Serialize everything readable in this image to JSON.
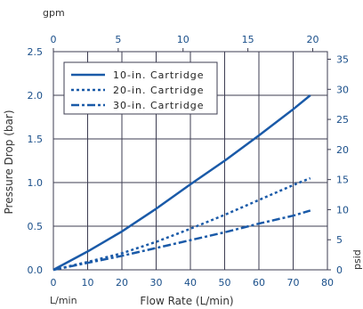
{
  "chart_data": {
    "type": "line",
    "xlabel": "Flow Rate (L/min)",
    "ylabel": "Pressure Drop (bar)",
    "x_unit": "L/min",
    "secondary_x_label": "gpm",
    "secondary_y_label": "psid",
    "xlim": [
      0,
      80
    ],
    "ylim": [
      0,
      2.5
    ],
    "x_ticks": [
      0,
      10,
      20,
      30,
      40,
      50,
      60,
      70,
      80
    ],
    "y_ticks": [
      "0.0",
      "0.5",
      "1.0",
      "1.5",
      "2.0",
      "2.5"
    ],
    "secondary_x_ticks": [
      0,
      5,
      10,
      15,
      20
    ],
    "secondary_y_ticks": [
      0,
      5,
      10,
      15,
      20,
      25,
      30,
      35
    ],
    "grid": true,
    "legend_position": "top-left",
    "series": [
      {
        "name": "10-in. Cartridge",
        "style": "solid",
        "x": [
          0,
          10,
          20,
          30,
          40,
          50,
          60,
          70,
          75
        ],
        "y": [
          0,
          0.21,
          0.44,
          0.7,
          0.98,
          1.25,
          1.54,
          1.84,
          2.0
        ]
      },
      {
        "name": "20-in. Cartridge",
        "style": "dotted",
        "x": [
          0,
          10,
          20,
          30,
          40,
          50,
          60,
          70,
          75
        ],
        "y": [
          0,
          0.09,
          0.19,
          0.32,
          0.47,
          0.63,
          0.8,
          0.97,
          1.05
        ]
      },
      {
        "name": "30-in. Cartridge",
        "style": "dashdot",
        "x": [
          0,
          10,
          20,
          30,
          40,
          50,
          60,
          70,
          75
        ],
        "y": [
          0,
          0.08,
          0.16,
          0.25,
          0.34,
          0.43,
          0.53,
          0.62,
          0.68
        ]
      }
    ],
    "colors": {
      "line": "#1a5aa8",
      "ticks": "#1a4f8a",
      "grid": "#3d3d52"
    }
  }
}
